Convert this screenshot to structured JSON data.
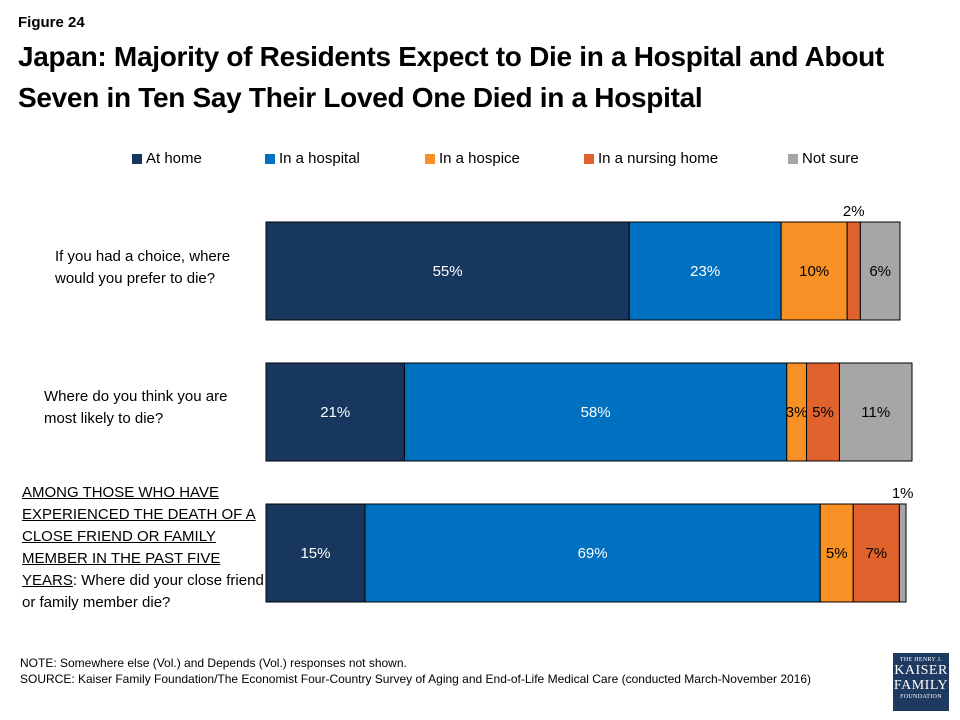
{
  "figure_label": "Figure 24",
  "title": "Japan: Majority of Residents Expect to Die in a Hospital and About Seven in Ten Say Their Loved One Died in a Hospital",
  "note": "NOTE: Somewhere else (Vol.) and Depends (Vol.) responses not shown.",
  "source": "SOURCE: Kaiser Family Foundation/The Economist Four-Country Survey of Aging and End-of-Life Medical Care (conducted March-November 2016)",
  "logo": {
    "line1": "THE HENRY J.",
    "line2a": "KAISER",
    "line2b": "FAMILY",
    "line3": "FOUNDATION"
  },
  "questions": {
    "q1": "If you had a choice, where would you prefer to die?",
    "q2": "Where do you think you are most likely to die?",
    "q3_underlined": "AMONG THOSE WHO HAVE EXPERIENCED THE DEATH OF A CLOSE FRIEND OR FAMILY MEMBER IN THE PAST FIVE YEARS",
    "q3_rest": ": Where did your close friend or family member die?"
  },
  "chart_data": {
    "type": "bar",
    "orientation": "horizontal",
    "stacked": true,
    "categories": [
      "If you had a choice, where would you prefer to die?",
      "Where do you think you are most likely to die?",
      "AMONG THOSE WHO HAVE EXPERIENCED THE DEATH OF A CLOSE FRIEND OR FAMILY MEMBER IN THE PAST FIVE YEARS: Where did your close friend or family member die?"
    ],
    "series": [
      {
        "name": "At home",
        "color": "#17375e",
        "values": [
          55,
          21,
          15
        ]
      },
      {
        "name": "In a hospital",
        "color": "#0070c0",
        "values": [
          23,
          58,
          69
        ]
      },
      {
        "name": "In a hospice",
        "color": "#f79125",
        "values": [
          10,
          3,
          5
        ]
      },
      {
        "name": "In a nursing home",
        "color": "#e0622c",
        "values": [
          2,
          5,
          7
        ]
      },
      {
        "name": "Not sure",
        "color": "#a6a6a6",
        "values": [
          6,
          11,
          1
        ]
      }
    ],
    "legend_position": "top",
    "grid": false,
    "xlim": [
      0,
      100
    ]
  }
}
